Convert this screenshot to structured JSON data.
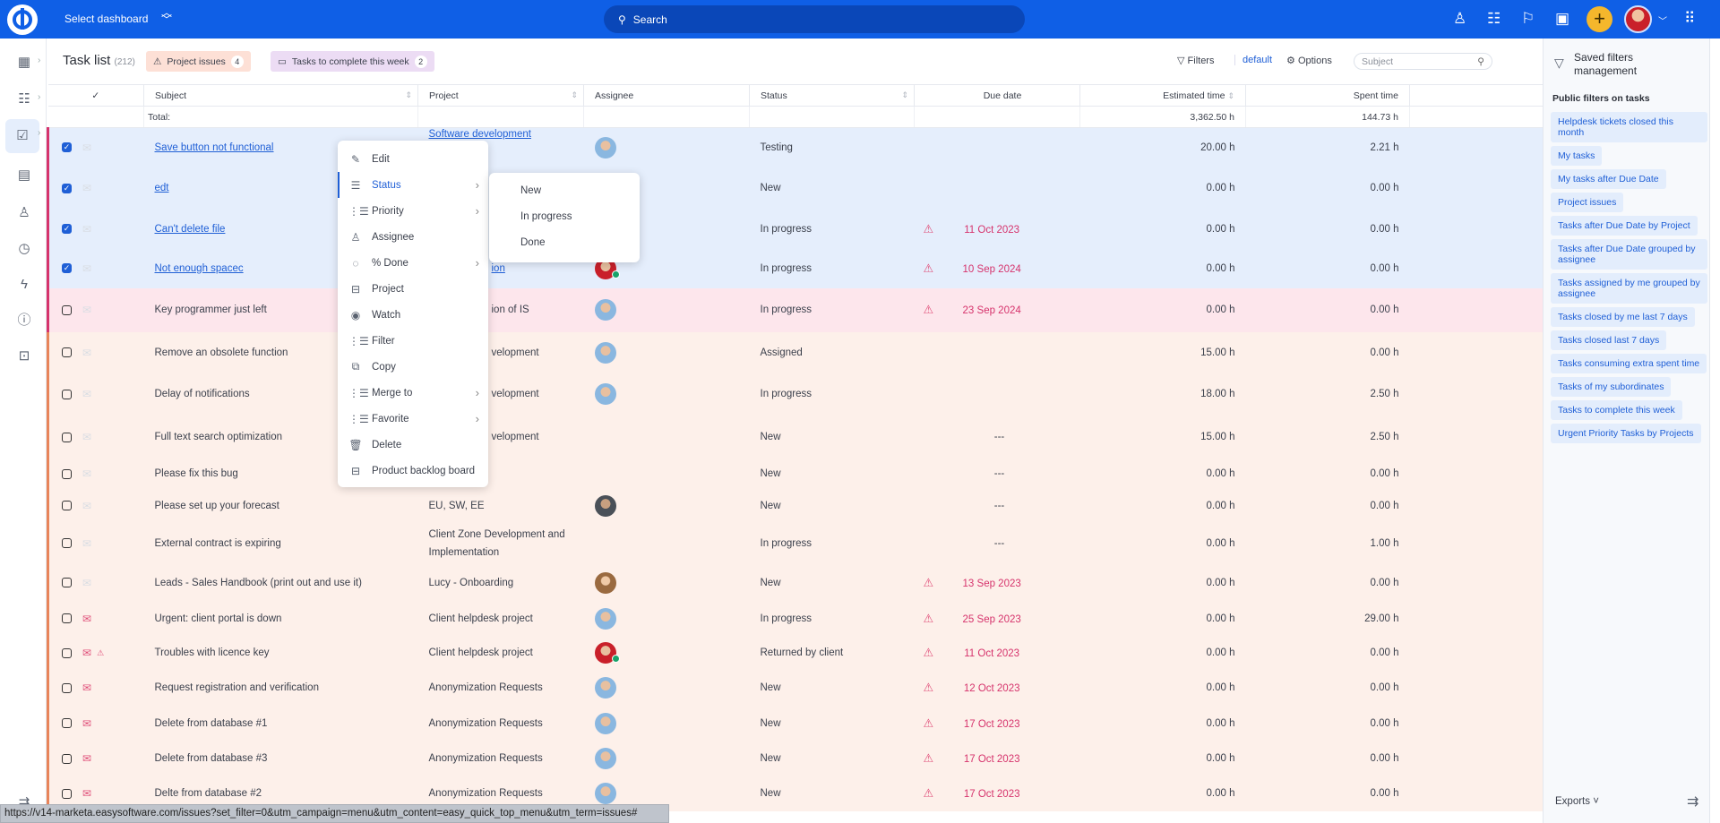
{
  "topbar": {
    "dashboard": "Select dashboard",
    "search": "Search"
  },
  "header": {
    "title": "Task list",
    "count": "(212)",
    "chips": [
      {
        "label": "Project issues",
        "count": "4"
      },
      {
        "label": "Tasks to complete this week",
        "count": "2"
      }
    ],
    "filters": "Filters",
    "default": "default",
    "options": "Options",
    "subject_placeholder": "Subject"
  },
  "columns": [
    "Subject",
    "Project",
    "Assignee",
    "Status",
    "Due date",
    "Estimated time",
    "Spent time"
  ],
  "totals": {
    "label": "Total:",
    "estimated": "3,362.50 h",
    "spent": "144.73 h"
  },
  "rows": [
    {
      "subject": "Save button not functional",
      "link": true,
      "project": "Software development",
      "plink": true,
      "avatar": "blue",
      "status": "Testing",
      "due": "",
      "warn": false,
      "est": "20.00 h",
      "spent": "2.21 h",
      "checked": true,
      "cls": "sel red",
      "mail": false
    },
    {
      "subject": "edt",
      "link": true,
      "project": "",
      "avatar": "",
      "status": "New",
      "due": "",
      "warn": false,
      "est": "0.00 h",
      "spent": "0.00 h",
      "checked": true,
      "cls": "sel red",
      "mail": false
    },
    {
      "subject": "Can't delete file",
      "link": true,
      "project": "",
      "avatar": "",
      "status": "In progress",
      "due": "11 Oct 2023",
      "warn": true,
      "est": "0.00 h",
      "spent": "0.00 h",
      "checked": true,
      "cls": "sel red",
      "mail": false
    },
    {
      "subject": "Not enough spacec",
      "link": true,
      "project": "ion",
      "frag": true,
      "plink": true,
      "avatar": "red",
      "ok": true,
      "status": "In progress",
      "due": "10 Sep 2024",
      "warn": true,
      "est": "0.00 h",
      "spent": "0.00 h",
      "checked": true,
      "cls": "sel red",
      "mail": false
    },
    {
      "subject": "Key programmer just left",
      "project": "ion of IS",
      "frag": true,
      "avatar": "blue",
      "status": "In progress",
      "due": "23 Sep 2024",
      "warn": true,
      "est": "0.00 h",
      "spent": "0.00 h",
      "cls": "pink red",
      "mail": false
    },
    {
      "subject": "Remove an obsolete function",
      "project": "velopment",
      "frag": true,
      "avatar": "blue",
      "status": "Assigned",
      "due": "",
      "warn": false,
      "est": "15.00 h",
      "spent": "0.00 h",
      "cls": "peach",
      "mail": false
    },
    {
      "subject": "Delay of notifications",
      "project": "velopment",
      "frag": true,
      "avatar": "blue",
      "status": "In progress",
      "due": "",
      "warn": false,
      "est": "18.00 h",
      "spent": "2.50 h",
      "cls": "peach",
      "mail": false
    },
    {
      "subject": "Full text search optimization",
      "project": "velopment",
      "frag": true,
      "avatar": "",
      "status": "New",
      "due": "---",
      "warn": false,
      "est": "15.00 h",
      "spent": "2.50 h",
      "cls": "peach",
      "mail": false
    },
    {
      "subject": "Please fix this bug",
      "project": "",
      "avatar": "",
      "status": "New",
      "due": "---",
      "warn": false,
      "est": "0.00 h",
      "spent": "0.00 h",
      "cls": "peach",
      "mail": false
    },
    {
      "subject": "Please set up your forecast",
      "project": "EU, SW, EE",
      "avatar": "dark",
      "status": "New",
      "due": "---",
      "warn": false,
      "est": "0.00 h",
      "spent": "0.00 h",
      "cls": "peach",
      "mail": false
    },
    {
      "subject": "External contract is expiring",
      "project": "Client Zone Development and Implementation",
      "avatar": "",
      "status": "In progress",
      "due": "---",
      "warn": false,
      "est": "0.00 h",
      "spent": "1.00 h",
      "cls": "peach",
      "mail": false
    },
    {
      "subject": "Leads - Sales Handbook (print out and use it)",
      "project": "Lucy - Onboarding",
      "avatar": "fem",
      "status": "New",
      "due": "13 Sep 2023",
      "warn": true,
      "est": "0.00 h",
      "spent": "0.00 h",
      "cls": "peach",
      "mail": false
    },
    {
      "subject": "Urgent: client portal is down",
      "project": "Client helpdesk project",
      "avatar": "blue",
      "status": "In progress",
      "due": "25 Sep 2023",
      "warn": true,
      "est": "0.00 h",
      "spent": "29.00 h",
      "cls": "peach",
      "mail": true
    },
    {
      "subject": "Troubles with licence key",
      "project": "Client helpdesk project",
      "avatar": "red",
      "ok": true,
      "status": "Returned by client",
      "due": "11 Oct 2023",
      "warn": true,
      "est": "0.00 h",
      "spent": "0.00 h",
      "cls": "peach",
      "mail": true,
      "flag": true
    },
    {
      "subject": "Request registration and verification",
      "project": "Anonymization Requests",
      "avatar": "blue",
      "status": "New",
      "due": "12 Oct 2023",
      "warn": true,
      "est": "0.00 h",
      "spent": "0.00 h",
      "cls": "peach",
      "mail": true
    },
    {
      "subject": "Delete from database #1",
      "project": "Anonymization Requests",
      "avatar": "blue",
      "status": "New",
      "due": "17 Oct 2023",
      "warn": true,
      "est": "0.00 h",
      "spent": "0.00 h",
      "cls": "peach",
      "mail": true
    },
    {
      "subject": "Delete from database #3",
      "project": "Anonymization Requests",
      "avatar": "blue",
      "status": "New",
      "due": "17 Oct 2023",
      "warn": true,
      "est": "0.00 h",
      "spent": "0.00 h",
      "cls": "peach",
      "mail": true
    },
    {
      "subject": "Delte from database #2",
      "project": "Anonymization Requests",
      "avatar": "blue",
      "status": "New",
      "due": "17 Oct 2023",
      "warn": true,
      "est": "0.00 h",
      "spent": "0.00 h",
      "cls": "peach",
      "mail": true
    }
  ],
  "context_menu": [
    {
      "label": "Edit",
      "icon": "✎",
      "sub": false
    },
    {
      "label": "Status",
      "icon": "☰",
      "sub": true,
      "active": true
    },
    {
      "label": "Priority",
      "icon": "⋮☰",
      "sub": true
    },
    {
      "label": "Assignee",
      "icon": "♙",
      "sub": false
    },
    {
      "label": "% Done",
      "icon": "◌",
      "sub": true
    },
    {
      "label": "Project",
      "icon": "⊟",
      "sub": false
    },
    {
      "label": "Watch",
      "icon": "◉",
      "sub": false
    },
    {
      "label": "Filter",
      "icon": "⋮☰",
      "sub": false
    },
    {
      "label": "Copy",
      "icon": "⧉",
      "sub": false
    },
    {
      "label": "Merge to",
      "icon": "⋮☰",
      "sub": true
    },
    {
      "label": "Favorite",
      "icon": "⋮☰",
      "sub": true
    },
    {
      "label": "Delete",
      "icon": "🗑",
      "sub": false
    },
    {
      "label": "Product backlog board",
      "icon": "⊟",
      "sub": false
    }
  ],
  "status_submenu": [
    "New",
    "In progress",
    "Done"
  ],
  "right_panel": {
    "title": "Saved filters management",
    "section": "Public filters on tasks",
    "filters": [
      "Helpdesk tickets closed this month",
      "My tasks",
      "My tasks after Due Date",
      "Project issues",
      "Tasks after Due Date by Project",
      "Tasks after Due Date grouped by assignee",
      "Tasks assigned by me grouped by assignee",
      "Tasks closed by me last 7 days",
      "Tasks closed last 7 days",
      "Tasks consuming extra spent time",
      "Tasks of my subordinates",
      "Tasks to complete this week",
      "Urgent Priority Tasks by Projects"
    ],
    "exports": "Exports"
  },
  "status_url": "https://v14-marketa.easysoftware.com/issues?set_filter=0&utm_campaign=menu&utm_content=easy_quick_top_menu&utm_term=issues#",
  "colors": {
    "brand": "#0f5fe6",
    "accent": "#f4b72c",
    "selected": "#e5eefc",
    "overdue": "#d6336c"
  }
}
